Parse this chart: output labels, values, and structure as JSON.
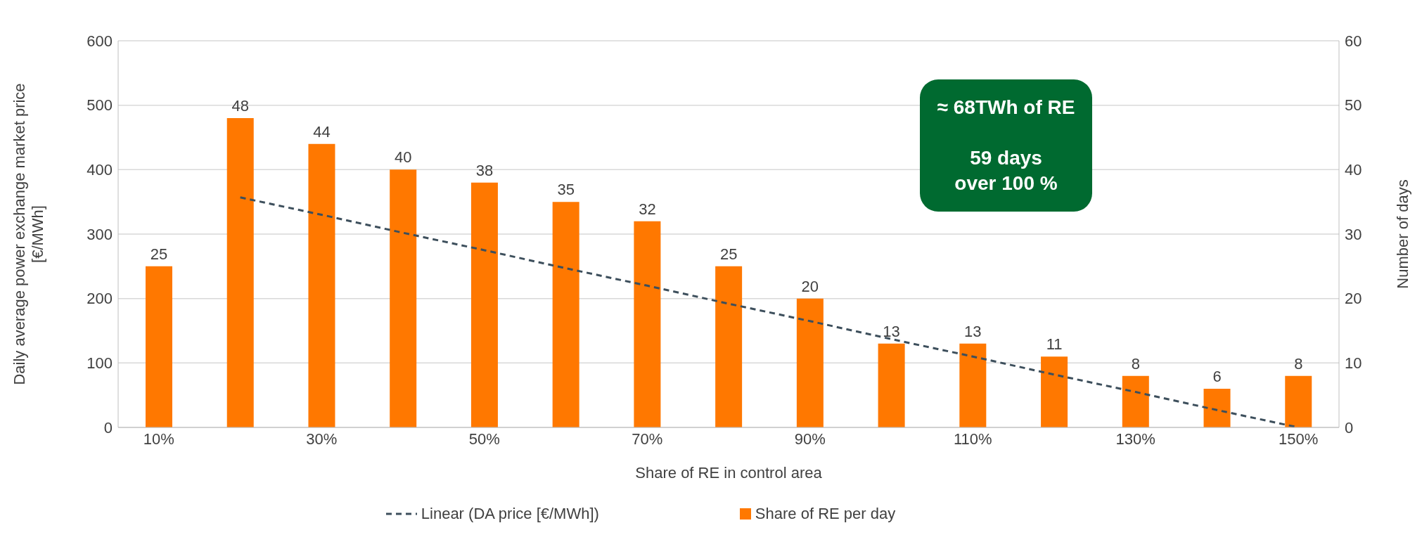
{
  "chart_data": {
    "type": "bar",
    "categories": [
      "10%",
      null,
      "30%",
      null,
      "50%",
      null,
      "70%",
      null,
      "90%",
      null,
      "110%",
      null,
      "130%",
      null,
      "150%"
    ],
    "xlabel": "Share of RE in control area",
    "ylabel": "Daily average power exchange market price [€/MWh]",
    "y2label": "Number of days",
    "ylim": [
      0,
      600
    ],
    "yticks": [
      0,
      100,
      200,
      300,
      400,
      500,
      600
    ],
    "y2lim": [
      0,
      60
    ],
    "y2ticks": [
      0,
      10,
      20,
      30,
      40,
      50,
      60
    ],
    "grid": "y",
    "legend": "bottom",
    "annotations": [
      "≈ 68TWh of RE",
      "59 days",
      "over 100 %"
    ],
    "series": [
      {
        "axis": "y2",
        "name": "Share of RE per day",
        "color": "#ff7800",
        "values": [
          25,
          48,
          44,
          40,
          38,
          35,
          32,
          25,
          20,
          13,
          13,
          11,
          8,
          6,
          8
        ],
        "value_labels": [
          "25",
          "48",
          "44",
          "40",
          "38",
          "35",
          "32",
          "25",
          "20",
          "13",
          "13",
          "11",
          "8",
          "6",
          "8"
        ]
      },
      {
        "type": "line",
        "axis": "y",
        "name": "Linear (DA price [€/MWh])",
        "color": "#3d4f5c",
        "line_style": "dashed",
        "marker": "none",
        "values": [
          null,
          357,
          330,
          302,
          275,
          247,
          220,
          192,
          165,
          137,
          110,
          82,
          55,
          27,
          0
        ]
      }
    ]
  }
}
